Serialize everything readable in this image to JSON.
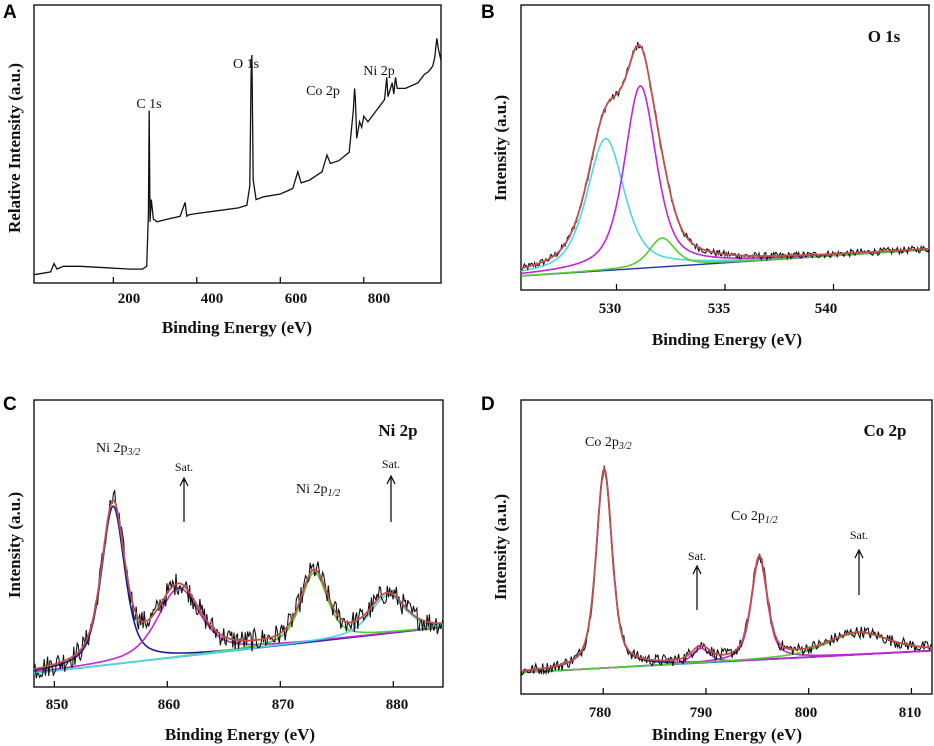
{
  "colors": {
    "raw": "#111111",
    "fit": "#c0504d",
    "background": "#2233aa",
    "magenta": "#c026d3",
    "cyan": "#4dd6e6",
    "green": "#4fcf2f",
    "navy": "#1a1a9a",
    "blue": "#3c6fe0"
  },
  "chart_data": [
    {
      "panel": "A",
      "type": "line",
      "title": "",
      "xlabel": "Binding Energy (eV)",
      "ylabel": "Relative Intensity (a.u.)",
      "xlim": [
        10,
        985
      ],
      "ylim": [
        0,
        100
      ],
      "xticks": [
        200,
        400,
        600,
        800
      ],
      "grid": false,
      "annotations": [
        "C 1s",
        "O 1s",
        "Co 2p",
        "Ni 2p"
      ],
      "series": [
        {
          "name": "survey",
          "x": [
            10,
            50,
            58,
            65,
            80,
            120,
            180,
            240,
            270,
            280,
            284,
            286,
            288,
            291,
            296,
            305,
            330,
            360,
            372,
            376,
            380,
            400,
            450,
            500,
            520,
            527,
            530,
            532,
            535,
            542,
            560,
            600,
            630,
            642,
            650,
            670,
            700,
            712,
            720,
            740,
            765,
            775,
            778,
            780,
            783,
            790,
            795,
            800,
            810,
            830,
            850,
            855,
            858,
            862,
            868,
            872,
            876,
            880,
            900,
            930,
            945,
            955,
            965,
            970,
            975,
            979,
            985
          ],
          "y": [
            3,
            4,
            7,
            5,
            6,
            6,
            5.5,
            5,
            5,
            6,
            25,
            62,
            22,
            30,
            23,
            22,
            23,
            24,
            29,
            24,
            24.5,
            25,
            26,
            27,
            28,
            35,
            75,
            82,
            37,
            30,
            31,
            32,
            34,
            40,
            36,
            37,
            40,
            46,
            43,
            44,
            47,
            62,
            70,
            66,
            52,
            58,
            56,
            60,
            58,
            62,
            66,
            74,
            67,
            69,
            72,
            68,
            74,
            70,
            70,
            72,
            75,
            76,
            78,
            81,
            88,
            84,
            80
          ]
        }
      ]
    },
    {
      "panel": "B",
      "type": "line",
      "title": "O 1s",
      "xlabel": "Binding Energy (eV)",
      "ylabel": "Intensity (a.u.)",
      "xlim": [
        525.6,
        544.4
      ],
      "ylim": [
        -0.05,
        1.05
      ],
      "xticks": [
        530,
        535,
        540
      ],
      "grid": false,
      "peaks": [
        {
          "name": "cyan",
          "center": 529.5,
          "height": 0.55,
          "width": 1.0
        },
        {
          "name": "magenta",
          "center": 531.1,
          "height": 0.76,
          "width": 0.85
        },
        {
          "name": "green",
          "center": 532.1,
          "height": 0.12,
          "width": 0.7
        }
      ],
      "baseline": {
        "start": 0.0,
        "end": 0.11
      }
    },
    {
      "panel": "C",
      "type": "line",
      "title": "Ni 2p",
      "xlabel": "Binding Energy (eV)",
      "ylabel": "Intensity (a.u.)",
      "xlim": [
        848.2,
        884.4
      ],
      "ylim": [
        -0.05,
        1.0
      ],
      "xticks": [
        850,
        860,
        870,
        880
      ],
      "grid": false,
      "annotations": [
        "Ni 2p3/2",
        "Sat.",
        "Ni 2p1/2",
        "Sat."
      ],
      "peaks": [
        {
          "name": "navy",
          "center": 855.2,
          "height": 0.62,
          "width": 1.2
        },
        {
          "name": "magenta",
          "center": 861.0,
          "height": 0.27,
          "width": 2.2
        },
        {
          "name": "green",
          "center": 873.0,
          "height": 0.27,
          "width": 1.4
        },
        {
          "name": "cyan",
          "center": 879.5,
          "height": 0.15,
          "width": 1.8
        }
      ],
      "baseline": {
        "start": 0.0,
        "end": 0.18
      }
    },
    {
      "panel": "D",
      "type": "line",
      "title": "Co 2p",
      "xlabel": "Binding Energy (eV)",
      "ylabel": "Intensity (a.u.)",
      "xlim": [
        772,
        812
      ],
      "ylim": [
        -0.05,
        1.05
      ],
      "xticks": [
        780,
        790,
        800,
        810
      ],
      "grid": false,
      "annotations": [
        "Co 2p3/2",
        "Sat.",
        "Co 2p1/2",
        "Sat."
      ],
      "peaks": [
        {
          "name": "navy",
          "center": 780.1,
          "height": 0.82,
          "width": 0.9
        },
        {
          "name": "magenta",
          "center": 789.5,
          "height": 0.06,
          "width": 1.0
        },
        {
          "name": "magenta",
          "center": 795.2,
          "height": 0.42,
          "width": 0.9
        },
        {
          "name": "green",
          "center": 804.8,
          "height": 0.09,
          "width": 3.5
        }
      ],
      "baseline": {
        "start": 0.03,
        "end": 0.12
      }
    }
  ],
  "panels": {
    "A": {
      "letter": "A",
      "xlabel": "Binding Energy (eV)",
      "ylabel": "Relative Intensity (a.u.)",
      "ticks": [
        "200",
        "400",
        "600",
        "800"
      ],
      "labels": {
        "c1s": "C 1s",
        "o1s": "O 1s",
        "co2p": "Co 2p",
        "ni2p": "Ni 2p"
      }
    },
    "B": {
      "letter": "B",
      "title": "O 1s",
      "xlabel": "Binding Energy (eV)",
      "ylabel": "Intensity (a.u.)",
      "ticks": [
        "530",
        "535",
        "540"
      ]
    },
    "C": {
      "letter": "C",
      "title": "Ni 2p",
      "xlabel": "Binding Energy (eV)",
      "ylabel": "Intensity (a.u.)",
      "ticks": [
        "850",
        "860",
        "870",
        "880"
      ],
      "peak1_main": "Ni 2p",
      "peak1_sub": "3/2",
      "peak2_main": "Ni 2p",
      "peak2_sub": "1/2",
      "sat": "Sat."
    },
    "D": {
      "letter": "D",
      "title": "Co 2p",
      "xlabel": "Binding Energy (eV)",
      "ylabel": "Intensity (a.u.)",
      "ticks": [
        "780",
        "790",
        "800",
        "810"
      ],
      "peak1_main": "Co 2p",
      "peak1_sub": "3/2",
      "peak2_main": "Co 2p",
      "peak2_sub": "1/2",
      "sat": "Sat."
    }
  }
}
